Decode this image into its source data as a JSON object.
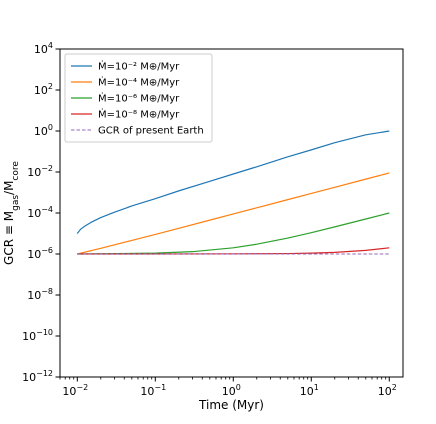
{
  "chart_data": {
    "type": "line",
    "xlabel": "Time (Myr)",
    "ylabel": "GCR ≡ M_gas/M_core",
    "xscale": "log",
    "yscale": "log",
    "xlim": [
      0.006,
      150
    ],
    "ylim": [
      1e-12,
      10000.0
    ],
    "x_ticks": [
      {
        "value": 0.01,
        "mantissa": "10",
        "exp": "−2"
      },
      {
        "value": 0.1,
        "mantissa": "10",
        "exp": "−1"
      },
      {
        "value": 1,
        "mantissa": "10",
        "exp": "0"
      },
      {
        "value": 10,
        "mantissa": "10",
        "exp": "1"
      },
      {
        "value": 100,
        "mantissa": "10",
        "exp": "2"
      }
    ],
    "y_ticks": [
      {
        "value": 10000.0,
        "mantissa": "10",
        "exp": "4"
      },
      {
        "value": 100.0,
        "mantissa": "10",
        "exp": "2"
      },
      {
        "value": 1,
        "mantissa": "10",
        "exp": "0"
      },
      {
        "value": 0.01,
        "mantissa": "10",
        "exp": "−2"
      },
      {
        "value": 0.0001,
        "mantissa": "10",
        "exp": "−4"
      },
      {
        "value": 1e-06,
        "mantissa": "10",
        "exp": "−6"
      },
      {
        "value": 1e-08,
        "mantissa": "10",
        "exp": "−8"
      },
      {
        "value": 1e-10,
        "mantissa": "10",
        "exp": "−10"
      },
      {
        "value": 1e-12,
        "mantissa": "10",
        "exp": "−12"
      }
    ],
    "legend_position": "top-left",
    "series": [
      {
        "name": "Ṁ=10⁻² M⊕/Myr",
        "color": "#1f77b4",
        "style": "solid",
        "x": [
          0.01,
          0.011,
          0.0125,
          0.015,
          0.02,
          0.03,
          0.05,
          0.1,
          0.2,
          0.5,
          1,
          2,
          5,
          10,
          20,
          50,
          100
        ],
        "y": [
          1e-05,
          1.6e-05,
          2.3e-05,
          3.5e-05,
          6e-05,
          0.00011,
          0.00022,
          0.0005,
          0.0012,
          0.0035,
          0.008,
          0.018,
          0.055,
          0.12,
          0.27,
          0.65,
          1.0
        ]
      },
      {
        "name": "Ṁ=10⁻⁴ M⊕/Myr",
        "color": "#ff7f0e",
        "style": "solid",
        "x": [
          0.01,
          0.02,
          0.05,
          0.1,
          0.2,
          0.5,
          1,
          2,
          5,
          10,
          20,
          50,
          100
        ],
        "y": [
          1e-06,
          1.9e-06,
          4.6e-06,
          9e-06,
          1.8e-05,
          4.5e-05,
          9e-05,
          0.00018,
          0.00045,
          0.0009,
          0.0018,
          0.0045,
          0.009
        ]
      },
      {
        "name": "Ṁ=10⁻⁶ M⊕/Myr",
        "color": "#2ca02c",
        "style": "solid",
        "x": [
          0.01,
          0.1,
          0.3,
          1,
          2,
          5,
          10,
          20,
          50,
          100
        ],
        "y": [
          1e-06,
          1.1e-06,
          1.3e-06,
          2e-06,
          3e-06,
          6e-06,
          1.1e-05,
          2.1e-05,
          5.1e-05,
          0.0001
        ]
      },
      {
        "name": "Ṁ=10⁻⁸ M⊕/Myr",
        "color": "#d62728",
        "style": "solid",
        "x": [
          0.01,
          1,
          5,
          10,
          20,
          50,
          100
        ],
        "y": [
          1e-06,
          1.01e-06,
          1.05e-06,
          1.1e-06,
          1.2e-06,
          1.5e-06,
          2e-06
        ]
      },
      {
        "name": "GCR of present Earth",
        "color": "#9467bd",
        "style": "dashed",
        "x": [
          0.01,
          100
        ],
        "y": [
          1e-06,
          1e-06
        ]
      }
    ]
  }
}
